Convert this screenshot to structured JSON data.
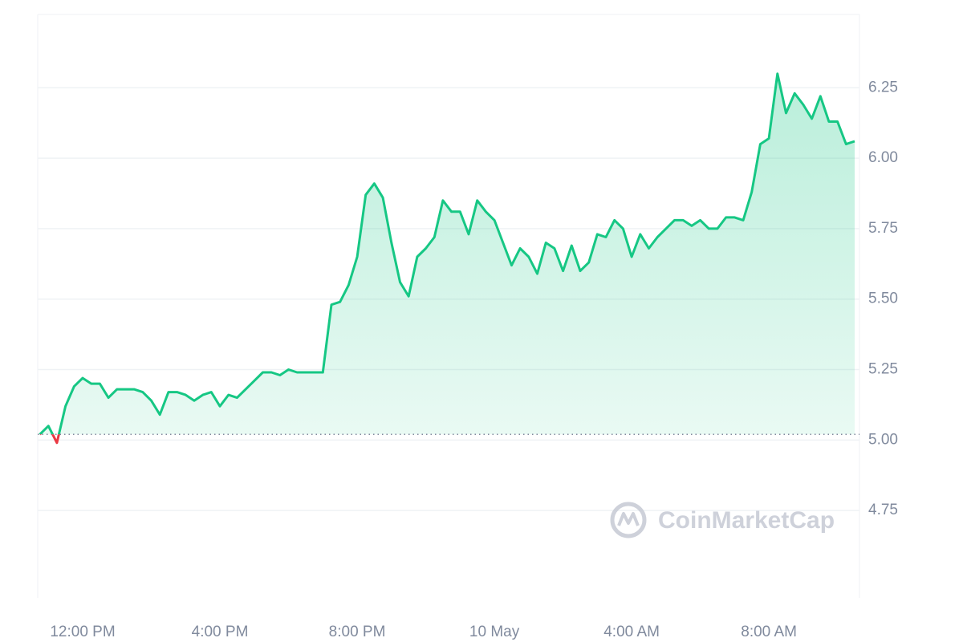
{
  "chart_data": {
    "type": "line",
    "color": "#16c784",
    "negative_color": "#ea3943",
    "baseline": 5.02,
    "watermark": "CoinMarketCap",
    "x": [
      10.75,
      11.0,
      11.25,
      11.5,
      11.75,
      12.0,
      12.25,
      12.5,
      12.75,
      13.0,
      13.25,
      13.5,
      13.75,
      14.0,
      14.25,
      14.5,
      14.75,
      15.0,
      15.25,
      15.5,
      15.75,
      16.0,
      16.25,
      16.5,
      16.75,
      17.0,
      17.25,
      17.5,
      17.75,
      18.0,
      18.25,
      18.5,
      18.75,
      19.0,
      19.25,
      19.5,
      19.75,
      20.0,
      20.25,
      20.5,
      20.75,
      21.0,
      21.25,
      21.5,
      21.75,
      22.0,
      22.25,
      22.5,
      22.75,
      23.0,
      23.25,
      23.5,
      23.75,
      24.0,
      24.25,
      24.5,
      24.75,
      25.0,
      25.25,
      25.5,
      25.75,
      26.0,
      26.25,
      26.5,
      26.75,
      27.0,
      27.25,
      27.5,
      27.75,
      28.0,
      28.25,
      28.5,
      28.75,
      29.0,
      29.25,
      29.5,
      29.75,
      30.0,
      30.25,
      30.5,
      30.75,
      31.0,
      31.25,
      31.5,
      31.75,
      32.0,
      32.25,
      32.5,
      32.75,
      33.0,
      33.25,
      33.5,
      33.75,
      34.0,
      34.25,
      34.5
    ],
    "values": [
      5.02,
      5.05,
      4.99,
      5.12,
      5.19,
      5.22,
      5.2,
      5.2,
      5.15,
      5.18,
      5.18,
      5.18,
      5.17,
      5.14,
      5.09,
      5.17,
      5.17,
      5.16,
      5.14,
      5.16,
      5.17,
      5.12,
      5.16,
      5.15,
      5.18,
      5.21,
      5.24,
      5.24,
      5.23,
      5.25,
      5.24,
      5.24,
      5.24,
      5.24,
      5.48,
      5.49,
      5.55,
      5.65,
      5.87,
      5.91,
      5.86,
      5.7,
      5.56,
      5.51,
      5.65,
      5.68,
      5.72,
      5.85,
      5.81,
      5.81,
      5.73,
      5.85,
      5.81,
      5.78,
      5.7,
      5.62,
      5.68,
      5.65,
      5.59,
      5.7,
      5.68,
      5.6,
      5.69,
      5.6,
      5.63,
      5.73,
      5.72,
      5.78,
      5.75,
      5.65,
      5.73,
      5.68,
      5.72,
      5.75,
      5.78,
      5.78,
      5.76,
      5.78,
      5.75,
      5.75,
      5.79,
      5.79,
      5.78,
      5.88,
      6.05,
      6.07,
      6.3,
      6.16,
      6.23,
      6.19,
      6.14,
      6.22,
      6.13,
      6.13,
      6.05,
      6.06
    ],
    "xlim": [
      10.69,
      34.64
    ],
    "xticks": [
      {
        "value": 12,
        "label": "12:00 PM"
      },
      {
        "value": 16,
        "label": "4:00 PM"
      },
      {
        "value": 20,
        "label": "8:00 PM"
      },
      {
        "value": 24,
        "label": "10 May"
      },
      {
        "value": 28,
        "label": "4:00 AM"
      },
      {
        "value": 32,
        "label": "8:00 AM"
      }
    ],
    "ylim": [
      4.44,
      6.51
    ],
    "yticks": [
      4.75,
      {
        "value": 5,
        "label": "5.00"
      },
      5.25,
      {
        "value": 5.5,
        "label": "5.50"
      },
      5.75,
      {
        "value": 6,
        "label": "6.00"
      },
      6.25
    ],
    "grid": true
  }
}
